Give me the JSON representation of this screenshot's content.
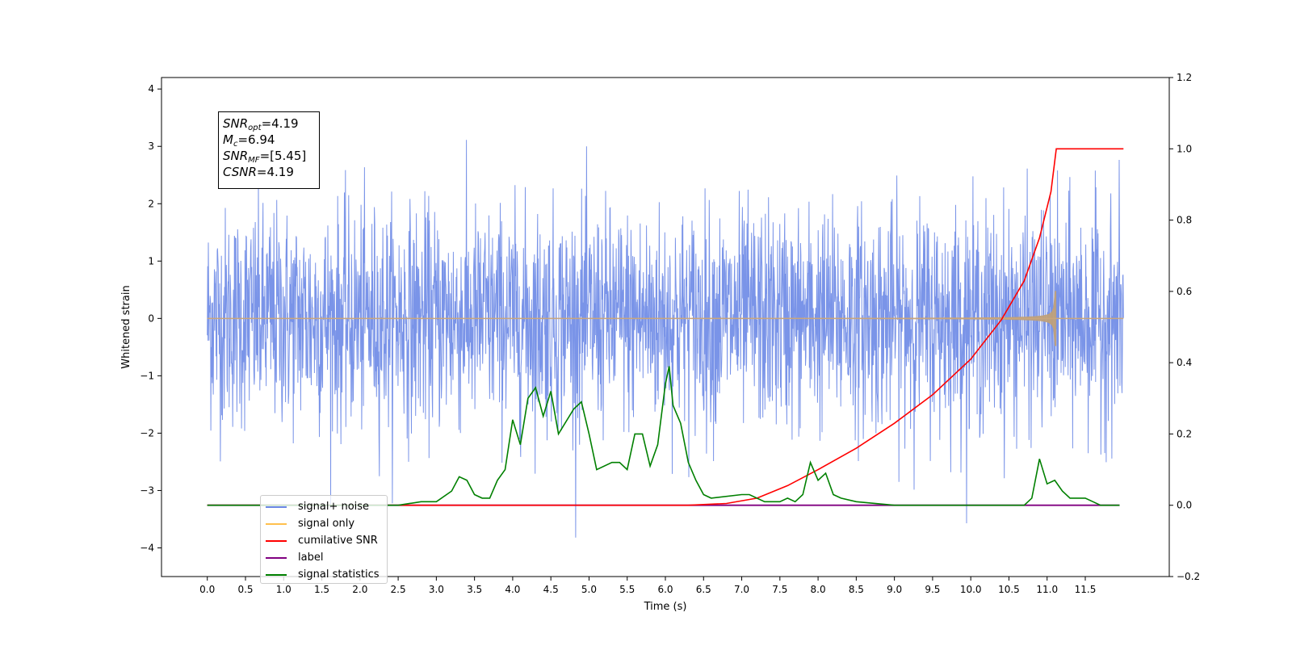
{
  "chart_data": {
    "type": "line",
    "xlabel": "Time (s)",
    "ylabel": "Whitened strain",
    "xlim": [
      -0.6,
      12.6
    ],
    "ylim": [
      -4.5,
      4.2
    ],
    "y2lim": [
      -0.2,
      1.2
    ],
    "xticks": [
      "0.0",
      "0.5",
      "1.0",
      "1.5",
      "2.0",
      "2.5",
      "3.0",
      "3.5",
      "4.0",
      "4.5",
      "5.0",
      "5.5",
      "6.0",
      "6.5",
      "7.0",
      "7.5",
      "8.0",
      "8.5",
      "9.0",
      "9.5",
      "10.0",
      "10.5",
      "11.0",
      "11.5"
    ],
    "yticks": [
      "4",
      "3",
      "2",
      "1",
      "0",
      "−1",
      "−2",
      "−3",
      "−4"
    ],
    "y2ticks": [
      "1.2",
      "1.0",
      "0.8",
      "0.6",
      "0.4",
      "0.2",
      "0.0",
      "−0.2"
    ],
    "grid": false,
    "legend_position": "lower-left",
    "annotation": {
      "snr_opt": {
        "base": "SNR",
        "sub": "opt",
        "value": "=4.19"
      },
      "mc": {
        "base": "M",
        "sub": "c",
        "value": "=6.94"
      },
      "snr_mf": {
        "base": "SNR",
        "sub": "MF",
        "value": "=[5.45]"
      },
      "csnr": {
        "base": "CSNR",
        "value": "=4.19"
      }
    },
    "series": [
      {
        "name": "signal+ noise",
        "color": "#6b88e5",
        "axis": "left",
        "description_values": {
          "x_start": 0.0,
          "x_end": 12.0,
          "typical_range": [
            -2.0,
            2.3
          ],
          "extremes": [
            -4.1,
            3.8
          ]
        }
      },
      {
        "name": "signal only",
        "color": "#ffc04d",
        "axis": "left",
        "description_values": {
          "x_start": 0.0,
          "x_end": 12.0,
          "merger_time": 11.1,
          "peak_amplitude": 0.5
        }
      },
      {
        "name": "cumilative SNR",
        "color": "#ff0000",
        "axis": "right",
        "x": [
          0.0,
          6.3,
          6.8,
          7.2,
          7.6,
          8.0,
          8.5,
          9.0,
          9.5,
          10.0,
          10.4,
          10.7,
          10.9,
          11.05,
          11.12,
          11.2,
          12.0
        ],
        "y": [
          0.0,
          0.0,
          0.005,
          0.02,
          0.055,
          0.1,
          0.16,
          0.23,
          0.31,
          0.41,
          0.52,
          0.63,
          0.75,
          0.88,
          1.0,
          1.0,
          1.0
        ]
      },
      {
        "name": "label",
        "color": "#800080",
        "axis": "right",
        "x": [
          0.0,
          11.95
        ],
        "y": [
          0.0,
          0.0
        ]
      },
      {
        "name": "signal statistics",
        "color": "#008000",
        "axis": "right",
        "x": [
          0.0,
          2.5,
          2.8,
          3.0,
          3.2,
          3.3,
          3.4,
          3.5,
          3.6,
          3.7,
          3.8,
          3.9,
          4.0,
          4.1,
          4.2,
          4.3,
          4.4,
          4.5,
          4.6,
          4.8,
          4.9,
          5.0,
          5.1,
          5.3,
          5.4,
          5.5,
          5.6,
          5.7,
          5.8,
          5.9,
          6.0,
          6.05,
          6.1,
          6.2,
          6.3,
          6.4,
          6.5,
          6.6,
          7.0,
          7.1,
          7.3,
          7.5,
          7.6,
          7.7,
          7.8,
          7.9,
          8.0,
          8.1,
          8.2,
          8.3,
          8.5,
          9.0,
          10.0,
          10.7,
          10.8,
          10.9,
          11.0,
          11.1,
          11.2,
          11.3,
          11.4,
          11.5,
          11.6,
          11.7,
          11.95
        ],
        "y": [
          0.0,
          0.0,
          0.01,
          0.01,
          0.04,
          0.08,
          0.07,
          0.03,
          0.02,
          0.02,
          0.07,
          0.1,
          0.24,
          0.17,
          0.3,
          0.33,
          0.25,
          0.32,
          0.2,
          0.27,
          0.29,
          0.2,
          0.1,
          0.12,
          0.12,
          0.1,
          0.2,
          0.2,
          0.11,
          0.17,
          0.34,
          0.39,
          0.28,
          0.23,
          0.12,
          0.07,
          0.03,
          0.02,
          0.03,
          0.03,
          0.01,
          0.01,
          0.02,
          0.01,
          0.03,
          0.12,
          0.07,
          0.09,
          0.03,
          0.02,
          0.01,
          0.0,
          0.0,
          0.0,
          0.02,
          0.13,
          0.06,
          0.07,
          0.04,
          0.02,
          0.02,
          0.02,
          0.01,
          0.0,
          0.0
        ]
      }
    ]
  }
}
